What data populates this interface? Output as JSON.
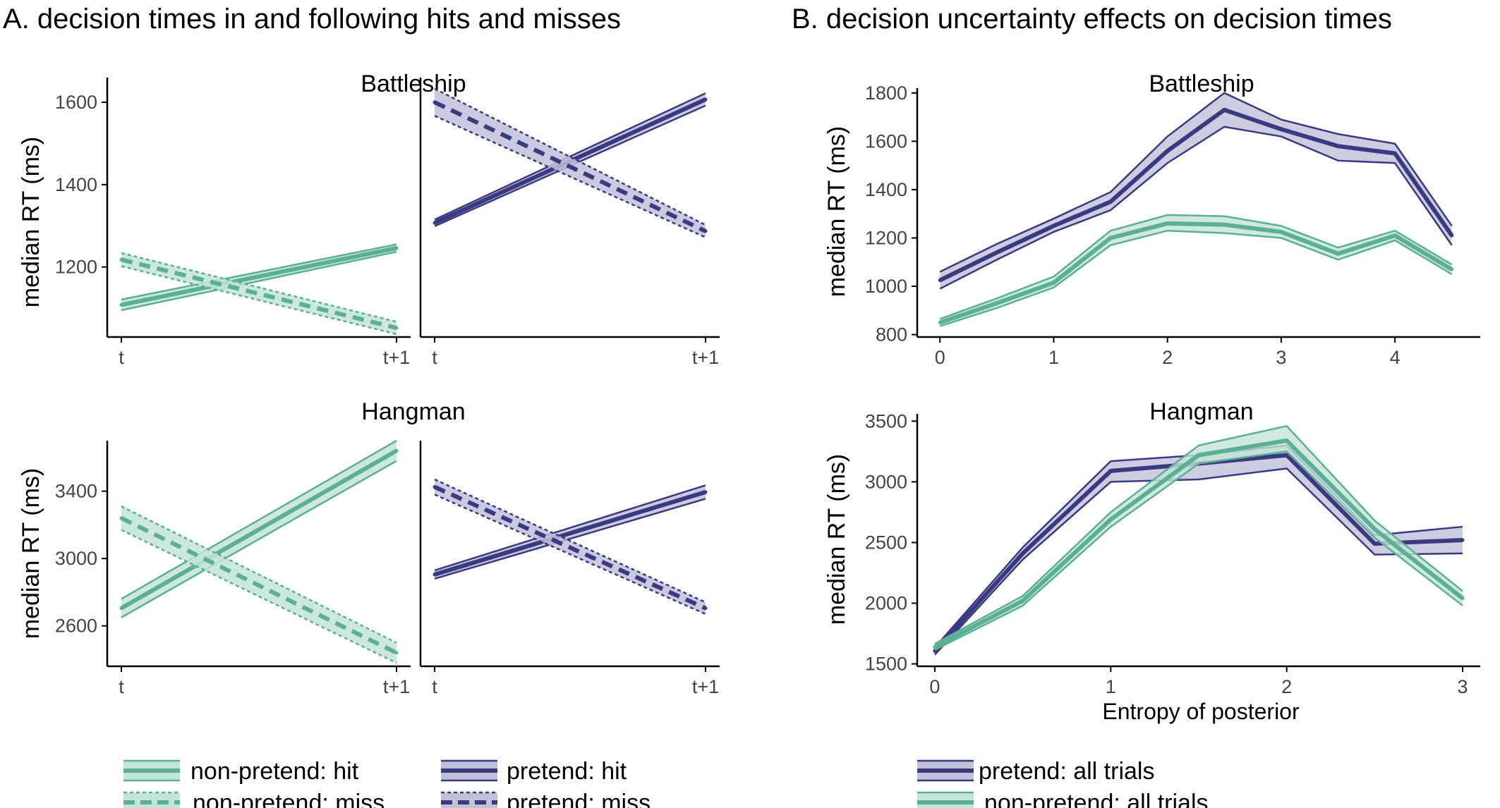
{
  "titles": {
    "panel_a": "A. decision times in and following hits and misses",
    "panel_b": "B. decision uncertainty effects on decision times"
  },
  "colors": {
    "nonpretend": "#5aaf94",
    "nonpretend_fill": "#c3e4d8",
    "pretend": "#3a3a80",
    "pretend_fill": "#c0c0d9"
  },
  "legend_a": {
    "nonpretend_hit": "non-pretend: hit",
    "nonpretend_miss": "non-pretend: miss",
    "pretend_hit": "pretend: hit",
    "pretend_miss": "pretend: miss"
  },
  "legend_b": {
    "pretend_all": "pretend: all trials",
    "nonpretend_all": "non-pretend: all trials"
  },
  "chart_data": [
    {
      "id": "A-battleship",
      "type": "line",
      "subtitle": "Battleship",
      "ylabel": "median RT (ms)",
      "categories": [
        "t",
        "t+1"
      ],
      "ylim": [
        1030,
        1660
      ],
      "yticks": [
        1200,
        1400,
        1600
      ],
      "facets": [
        {
          "series": [
            {
              "name": "non-pretend: hit",
              "group": "nonpretend",
              "style": "solid",
              "values": [
                1108,
                1246
              ],
              "lower": [
                1095,
                1237
              ],
              "upper": [
                1121,
                1255
              ]
            },
            {
              "name": "non-pretend: miss",
              "group": "nonpretend",
              "style": "dashed",
              "values": [
                1218,
                1052
              ],
              "lower": [
                1202,
                1037
              ],
              "upper": [
                1234,
                1067
              ]
            }
          ]
        },
        {
          "series": [
            {
              "name": "pretend: hit",
              "group": "pretend",
              "style": "solid",
              "values": [
                1307,
                1607
              ],
              "lower": [
                1299,
                1592
              ],
              "upper": [
                1315,
                1622
              ]
            },
            {
              "name": "pretend: miss",
              "group": "pretend",
              "style": "dashed",
              "values": [
                1600,
                1287
              ],
              "lower": [
                1567,
                1272
              ],
              "upper": [
                1633,
                1302
              ]
            }
          ]
        }
      ]
    },
    {
      "id": "A-hangman",
      "type": "line",
      "subtitle": "Hangman",
      "ylabel": "median RT (ms)",
      "categories": [
        "t",
        "t+1"
      ],
      "ylim": [
        2360,
        3700
      ],
      "yticks": [
        2600,
        3000,
        3400
      ],
      "facets": [
        {
          "series": [
            {
              "name": "non-pretend: hit",
              "group": "nonpretend",
              "style": "solid",
              "values": [
                2705,
                3640
              ],
              "lower": [
                2650,
                3580
              ],
              "upper": [
                2760,
                3700
              ]
            },
            {
              "name": "non-pretend: miss",
              "group": "nonpretend",
              "style": "dashed",
              "values": [
                3240,
                2440
              ],
              "lower": [
                3170,
                2380
              ],
              "upper": [
                3310,
                2500
              ]
            }
          ]
        },
        {
          "series": [
            {
              "name": "pretend: hit",
              "group": "pretend",
              "style": "solid",
              "values": [
                2905,
                3395
              ],
              "lower": [
                2880,
                3355
              ],
              "upper": [
                2930,
                3435
              ]
            },
            {
              "name": "pretend: miss",
              "group": "pretend",
              "style": "dashed",
              "values": [
                3425,
                2705
              ],
              "lower": [
                3380,
                2670
              ],
              "upper": [
                3470,
                2740
              ]
            }
          ]
        }
      ]
    },
    {
      "id": "B-battleship",
      "type": "line",
      "subtitle": "Battleship",
      "ylabel": "median RT (ms)",
      "x": [
        0,
        0.5,
        1,
        1.5,
        2,
        2.5,
        3,
        3.5,
        4,
        4.5
      ],
      "xticks": [
        0,
        1,
        2,
        3,
        4
      ],
      "xlim": [
        -0.2,
        4.75
      ],
      "ylim": [
        790,
        1820
      ],
      "yticks": [
        800,
        1000,
        1200,
        1400,
        1600,
        1800
      ],
      "series": [
        {
          "name": "pretend: all trials",
          "group": "pretend",
          "values": [
            1025,
            1140,
            1250,
            1350,
            1560,
            1730,
            1650,
            1580,
            1550,
            1210
          ],
          "lower": [
            990,
            1110,
            1225,
            1315,
            1510,
            1660,
            1620,
            1520,
            1510,
            1170
          ],
          "upper": [
            1060,
            1175,
            1280,
            1390,
            1620,
            1800,
            1690,
            1630,
            1590,
            1250
          ]
        },
        {
          "name": "non-pretend: all trials",
          "group": "nonpretend",
          "values": [
            850,
            930,
            1015,
            1200,
            1260,
            1255,
            1225,
            1135,
            1210,
            1070
          ],
          "lower": [
            835,
            910,
            995,
            1170,
            1230,
            1220,
            1200,
            1110,
            1190,
            1050
          ],
          "upper": [
            865,
            950,
            1040,
            1230,
            1295,
            1290,
            1250,
            1160,
            1230,
            1090
          ]
        }
      ]
    },
    {
      "id": "B-hangman",
      "type": "line",
      "subtitle": "Hangman",
      "ylabel": "median RT (ms)",
      "xlabel": "Entropy of posterior",
      "x": [
        0,
        0.5,
        1,
        1.5,
        2,
        2.5,
        3
      ],
      "xticks": [
        0,
        1,
        2,
        3
      ],
      "xlim": [
        -0.1,
        3.1
      ],
      "ylim": [
        1480,
        3560
      ],
      "yticks": [
        1500,
        2000,
        2500,
        3000,
        3500
      ],
      "series": [
        {
          "name": "pretend: all trials",
          "group": "pretend",
          "values": [
            1605,
            2410,
            3090,
            3150,
            3220,
            2490,
            2520
          ],
          "lower": [
            1575,
            2360,
            3000,
            3020,
            3110,
            2400,
            2410
          ],
          "upper": [
            1635,
            2460,
            3170,
            3220,
            3300,
            2560,
            2630
          ]
        },
        {
          "name": "non-pretend: all trials",
          "group": "nonpretend",
          "values": [
            1640,
            2020,
            2690,
            3220,
            3340,
            2610,
            2040
          ],
          "lower": [
            1615,
            1980,
            2630,
            3150,
            3250,
            2540,
            1980
          ],
          "upper": [
            1665,
            2060,
            2750,
            3300,
            3460,
            2680,
            2100
          ]
        }
      ]
    }
  ]
}
